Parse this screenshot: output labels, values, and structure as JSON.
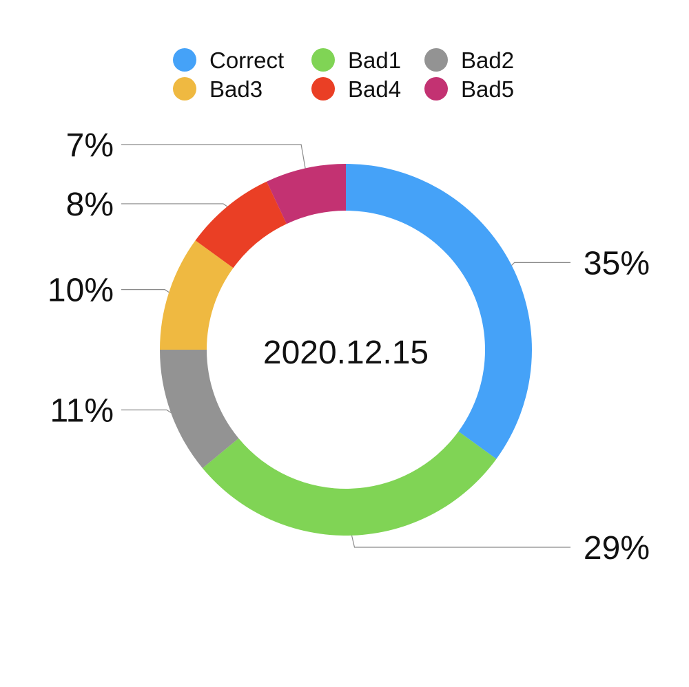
{
  "chart_data": {
    "type": "pie",
    "variant": "donut",
    "center_label": "2020.12.15",
    "categories": [
      "Correct",
      "Bad1",
      "Bad2",
      "Bad3",
      "Bad4",
      "Bad5"
    ],
    "values": [
      35,
      29,
      11,
      10,
      8,
      7
    ],
    "value_labels": [
      "35%",
      "29%",
      "11%",
      "10%",
      "8%",
      "7%"
    ],
    "colors": [
      "#45a2f8",
      "#80d455",
      "#939393",
      "#efb941",
      "#ea3f25",
      "#c33272"
    ],
    "legend_position": "top"
  }
}
